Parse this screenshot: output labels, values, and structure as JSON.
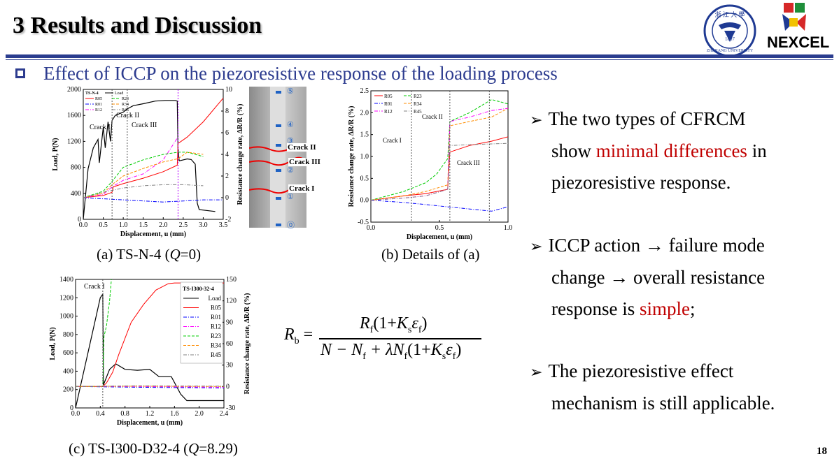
{
  "header": {
    "title": "3 Results and Discussion",
    "subtitle": "Effect of ICCP on the piezoresistive response of the loading process",
    "page_number": "18"
  },
  "logos": {
    "university": "ZHEJIANG UNIVERSITY",
    "university_year": "1897",
    "company": "NEXCEL"
  },
  "bullets": [
    {
      "pre": "The two types of CFRCM",
      "line2a": "show ",
      "hl": "minimal differences",
      "line2b": " in",
      "line3": "piezoresistive response."
    },
    {
      "line1": "ICCP action → failure mode",
      "line2": "change → overall resistance",
      "line3a": "response is ",
      "hl": "simple",
      "line3b": ";"
    },
    {
      "line1": "The piezoresistive effect",
      "line2": "mechanism is still applicable."
    }
  ],
  "captions": {
    "a": "(a) TS-N-4 (",
    "a_q": "Q",
    "a_tail": "=0)",
    "b": "(b) Details of (a)",
    "c": "(c) TS-I300-D32-4 (",
    "c_q": "Q",
    "c_tail": "=8.29)"
  },
  "photo_labels": {
    "crack2": "Crack II",
    "crack3": "Crack III",
    "crack1": "Crack I",
    "marks": [
      "⑤",
      "④",
      "③",
      "②",
      "①",
      "⓪"
    ]
  },
  "formula": {
    "lhs": "R",
    "lhs_sub": "b",
    "num": "R",
    "num_sub": "f",
    "num_rest": "(1+K",
    "num_s": "s",
    "num_eps": "ε",
    "num_f": "f",
    "num_close": ")",
    "den": "N − N",
    "den_sub": "f",
    "den_mid": " + λN",
    "den_sub2": "f",
    "den_rest": "(1+K",
    "den_s": "s",
    "den_eps": "ε",
    "den_f": "f",
    "den_close": ")"
  },
  "chart_data": [
    {
      "type": "line",
      "id": "a",
      "title": "",
      "xlabel": "Displacement, u (mm)",
      "ylabel": "Load, P(N)",
      "y2label": "Resistance change rate, ΔR/R (%)",
      "xlim": [
        0,
        3.5
      ],
      "ylim": [
        0,
        2000
      ],
      "y2lim": [
        -2,
        10
      ],
      "xticks": [
        "0.0",
        "0.5",
        "1.0",
        "1.5",
        "2.0",
        "2.5",
        "3.0",
        "3.5"
      ],
      "yticks": [
        "0",
        "400",
        "800",
        "1200",
        "1600",
        "2000"
      ],
      "y2ticks": [
        "-2",
        "0",
        "2",
        "4",
        "6",
        "8",
        "10"
      ],
      "legend_title": "TS-N-4",
      "legend": [
        "Load",
        "R05",
        "R01",
        "R12",
        "R23",
        "R34",
        "R45"
      ],
      "annotations": [
        "Crack I",
        "Crack II",
        "Crack III"
      ],
      "colors": {
        "Load": "#000000",
        "R05": "#ff0000",
        "R01": "#0000ff",
        "R12": "#ff00ff",
        "R23": "#00cc00",
        "R34": "#ff8c00",
        "R45": "#808080"
      },
      "series": [
        {
          "name": "Load",
          "axis": "left",
          "x": [
            0,
            0.12,
            0.25,
            0.37,
            0.4,
            0.5,
            0.55,
            0.62,
            0.68,
            0.72,
            0.8,
            1.0,
            1.1,
            1.25,
            1.5,
            1.8,
            2.05,
            2.3,
            2.35,
            2.37,
            2.4,
            2.6,
            2.7,
            2.8,
            2.85,
            2.9,
            3.3
          ],
          "y": [
            0,
            780,
            1100,
            1230,
            870,
            1420,
            1100,
            1500,
            1200,
            1520,
            1600,
            1650,
            1700,
            1750,
            1780,
            1820,
            1830,
            1830,
            1820,
            1100,
            900,
            930,
            920,
            850,
            250,
            150,
            120
          ]
        },
        {
          "name": "R05",
          "axis": "right",
          "x": [
            0,
            0.5,
            0.72,
            0.75,
            1.0,
            1.5,
            2.0,
            2.35,
            2.37,
            2.6,
            3.0,
            3.5
          ],
          "y": [
            0,
            0.2,
            0.5,
            1.0,
            1.3,
            1.8,
            2.4,
            3.0,
            5.0,
            5.6,
            7.0,
            9.2
          ]
        },
        {
          "name": "R01",
          "axis": "right",
          "x": [
            0,
            0.5,
            1.0,
            1.5,
            2.0,
            2.5,
            3.0,
            3.5
          ],
          "y": [
            0,
            -0.1,
            -0.2,
            -0.3,
            -0.4,
            -0.3,
            -0.2,
            -0.2
          ]
        },
        {
          "name": "R12",
          "axis": "right",
          "x": [
            0,
            0.5,
            0.72,
            1.0,
            1.5,
            2.0,
            2.35
          ],
          "y": [
            0,
            0.3,
            1.0,
            1.6,
            2.2,
            3.5,
            5.5
          ]
        },
        {
          "name": "R23",
          "axis": "right",
          "x": [
            0,
            0.5,
            0.72,
            1.0,
            1.5,
            2.0,
            2.37,
            2.6,
            3.0
          ],
          "y": [
            0,
            0.6,
            1.5,
            2.8,
            3.5,
            4.0,
            4.2,
            4.2,
            3.8
          ]
        },
        {
          "name": "R34",
          "axis": "right",
          "x": [
            0,
            0.5,
            0.72,
            1.0,
            1.5,
            2.0,
            2.37,
            2.6,
            3.0
          ],
          "y": [
            0,
            0.4,
            1.2,
            2.0,
            2.7,
            3.3,
            3.6,
            4.2,
            4.0
          ]
        },
        {
          "name": "R45",
          "axis": "right",
          "x": [
            0,
            0.5,
            1.0,
            1.5,
            2.0,
            2.5,
            3.0
          ],
          "y": [
            0,
            0.5,
            0.9,
            1.1,
            1.2,
            1.2,
            1.1
          ]
        }
      ]
    },
    {
      "type": "line",
      "id": "b",
      "title": "",
      "xlabel": "Displacement, u (mm)",
      "ylabel": "Resistance change rate, ΔR/R (%)",
      "xlim": [
        0,
        1.25
      ],
      "ylim": [
        -0.5,
        2.5
      ],
      "xticks": [
        "0.0",
        "0.5",
        "1.0"
      ],
      "yticks": [
        "-0.5",
        "0.0",
        "0.5",
        "1.0",
        "1.5",
        "2.0",
        "2.5"
      ],
      "legend": [
        "R05",
        "R23",
        "R01",
        "R34",
        "R12",
        "R45"
      ],
      "annotations": [
        "Crack I",
        "Crack II",
        "Crack III"
      ],
      "series": [
        {
          "name": "R05",
          "x": [
            0,
            0.3,
            0.5,
            0.7,
            0.72,
            0.9,
            1.1,
            1.25
          ],
          "y": [
            0,
            0.1,
            0.15,
            0.25,
            1.1,
            1.25,
            1.35,
            1.45
          ]
        },
        {
          "name": "R23",
          "x": [
            0,
            0.3,
            0.5,
            0.6,
            0.7,
            0.72,
            0.9,
            1.1,
            1.25
          ],
          "y": [
            0,
            0.2,
            0.4,
            0.6,
            0.95,
            1.8,
            2.0,
            2.3,
            2.2
          ]
        },
        {
          "name": "R01",
          "x": [
            0,
            0.3,
            0.5,
            0.7,
            0.9,
            1.1,
            1.25
          ],
          "y": [
            0,
            -0.05,
            -0.1,
            -0.15,
            -0.2,
            -0.25,
            -0.15
          ]
        },
        {
          "name": "R34",
          "x": [
            0,
            0.3,
            0.5,
            0.7,
            0.72,
            0.9,
            1.1,
            1.25
          ],
          "y": [
            0,
            0.1,
            0.2,
            0.35,
            1.7,
            1.8,
            1.9,
            2.1
          ]
        },
        {
          "name": "R12",
          "x": [
            0,
            0.3,
            0.5,
            0.7,
            0.72,
            0.9,
            1.1,
            1.25
          ],
          "y": [
            0,
            0.05,
            0.1,
            0.25,
            1.8,
            1.9,
            2.05,
            2.1
          ]
        },
        {
          "name": "R45",
          "x": [
            0,
            0.3,
            0.5,
            0.7,
            0.72,
            1.0,
            1.25
          ],
          "y": [
            0,
            0.05,
            0.1,
            0.25,
            1.25,
            1.28,
            1.3
          ]
        }
      ]
    },
    {
      "type": "line",
      "id": "c",
      "title": "",
      "xlabel": "Displacement, u (mm)",
      "ylabel": "Load, P(N)",
      "y2label": "Resistance change rate, ΔR/R (%)",
      "xlim": [
        0,
        2.4
      ],
      "ylim": [
        0,
        1400
      ],
      "y2lim": [
        -30,
        150
      ],
      "xticks": [
        "0.0",
        "0.4",
        "0.8",
        "1.2",
        "1.6",
        "2.0",
        "2.4"
      ],
      "yticks": [
        "0",
        "200",
        "400",
        "600",
        "800",
        "1000",
        "1200",
        "1400"
      ],
      "y2ticks": [
        "-30",
        "0",
        "30",
        "60",
        "90",
        "120",
        "150"
      ],
      "legend_title": "TS-I300-32-4",
      "legend": [
        "Load",
        "R05",
        "R01",
        "R12",
        "R23",
        "R34",
        "R45"
      ],
      "annotations": [
        "Crack I"
      ],
      "series": [
        {
          "name": "Load",
          "axis": "left",
          "x": [
            0,
            0.2,
            0.4,
            0.44,
            0.45,
            0.55,
            0.65,
            0.8,
            1.0,
            1.2,
            1.35,
            1.55,
            1.7,
            1.8,
            2.0,
            2.4
          ],
          "y": [
            0,
            600,
            1200,
            1240,
            250,
            420,
            480,
            420,
            410,
            420,
            340,
            340,
            150,
            80,
            80,
            80
          ]
        },
        {
          "name": "R05",
          "axis": "right",
          "x": [
            0,
            0.44,
            0.5,
            0.6,
            0.7,
            0.9,
            1.1,
            1.3,
            1.5,
            1.6,
            2.4
          ],
          "y": [
            0,
            0,
            5,
            20,
            45,
            90,
            115,
            135,
            144,
            145,
            145
          ]
        },
        {
          "name": "R01",
          "axis": "right",
          "x": [
            0,
            1.0,
            2.4
          ],
          "y": [
            0,
            -1,
            -2
          ]
        },
        {
          "name": "R12",
          "axis": "right",
          "x": [
            0,
            1.0,
            2.4
          ],
          "y": [
            0,
            0,
            -1
          ]
        },
        {
          "name": "R23",
          "axis": "right",
          "x": [
            0,
            0.44,
            0.46,
            0.5,
            0.55,
            0.58
          ],
          "y": [
            0,
            0,
            70,
            85,
            120,
            150
          ]
        },
        {
          "name": "R34",
          "axis": "right",
          "x": [
            0,
            1.0,
            2.4
          ],
          "y": [
            0,
            0.5,
            0
          ]
        },
        {
          "name": "R45",
          "axis": "right",
          "x": [
            0,
            1.0,
            2.4
          ],
          "y": [
            0,
            1,
            0.5
          ]
        }
      ]
    }
  ]
}
